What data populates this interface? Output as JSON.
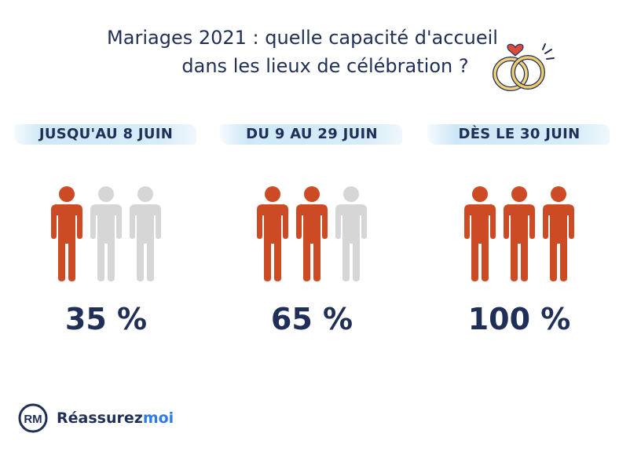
{
  "title": {
    "line1": "Mariages 2021 : quelle capacité d'accueil",
    "line2": "dans les lieux de célébration ?"
  },
  "colors": {
    "accent": "#cc4a24",
    "inactive": "#d6d6d6",
    "text": "#1f2f57",
    "brush": "#d6ecf8",
    "brand_blue": "#2f7de1"
  },
  "icons": {
    "title": "wedding-rings-icon",
    "figure": "person-icon",
    "logo": "rm-logo-icon"
  },
  "periods": [
    {
      "label": "JUSQU'AU 8 JUIN",
      "percent_label": "35 %",
      "value": 35,
      "filled_figures": 1,
      "total_figures": 3
    },
    {
      "label": "DU 9 AU 29 JUIN",
      "percent_label": "65 %",
      "value": 65,
      "filled_figures": 2,
      "total_figures": 3
    },
    {
      "label": "DÈS LE 30 JUIN",
      "percent_label": "100 %",
      "value": 100,
      "filled_figures": 3,
      "total_figures": 3
    }
  ],
  "brand": {
    "part1": "Réassurez",
    "part2": "moi",
    "mark_text": "RM"
  }
}
